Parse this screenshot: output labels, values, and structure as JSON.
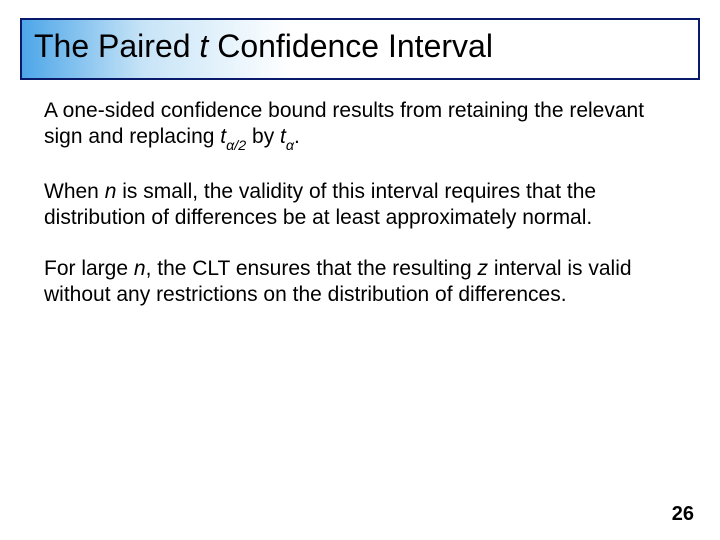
{
  "title": {
    "pre": "The Paired ",
    "italic": "t",
    "post": " Confidence Interval",
    "border_color": "#0a1a6a",
    "gradient_from": "#4da6e8",
    "gradient_mid": "#c7e4f7",
    "gradient_to": "#ffffff",
    "fontsize": 32
  },
  "paragraphs": {
    "p1": {
      "text_a": "A one-sided confidence bound results from retaining the relevant sign and replacing ",
      "t1": "t",
      "sub1": "α",
      "sub1b": "/2",
      "mid": " by ",
      "t2": "t",
      "sub2": "α",
      "end": "."
    },
    "p2": {
      "a": "When ",
      "n": "n",
      "b": " is small, the validity of this interval requires that the distribution of differences be at least approximately normal."
    },
    "p3": {
      "a": "For large ",
      "n": "n",
      "b": ", the CLT ensures that the resulting ",
      "z": "z",
      "c": " interval is valid without any restrictions on the distribution of differences."
    }
  },
  "page_number": "26",
  "style": {
    "body_fontsize": 21,
    "text_color": "#000000",
    "background_color": "#ffffff"
  }
}
